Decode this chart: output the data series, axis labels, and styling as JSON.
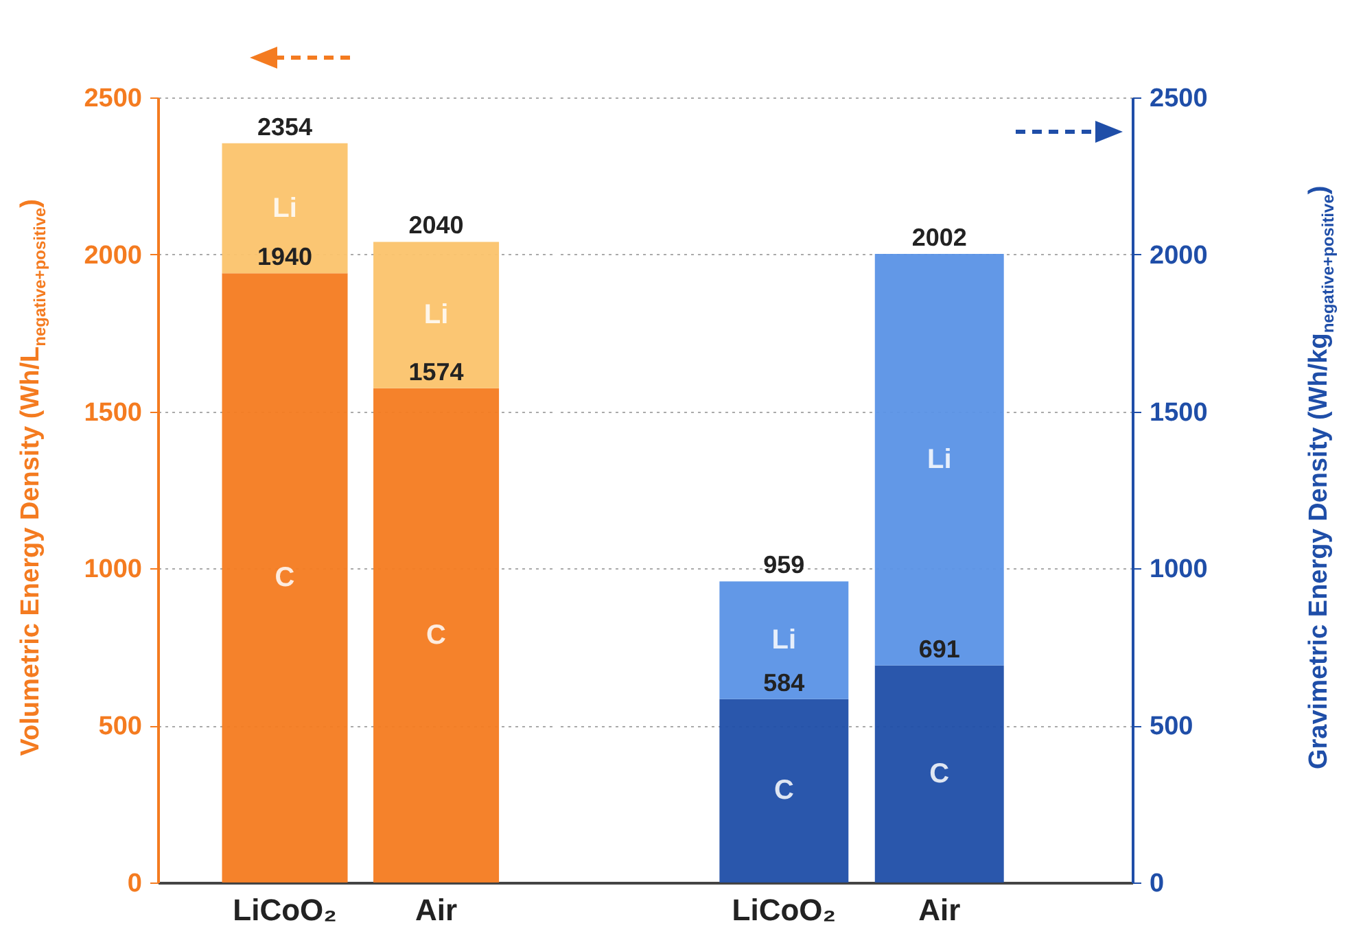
{
  "chart_data": [
    {
      "type": "bar",
      "stacked": true,
      "totals": [
        "2354",
        "2040"
      ],
      "categories": [
        "LiCoO₂",
        "Air"
      ],
      "ylabel": "Volumetric Energy Density (Wh/L$_{negative+positive}$)",
      "ylim": [
        0,
        2500
      ],
      "yticks": [
        0,
        500,
        1000,
        1500,
        2000,
        2500
      ],
      "grid": "y",
      "series": [
        {
          "name": "C",
          "color": "#f47b20",
          "values": [
            1940,
            1574
          ],
          "value_labels": [
            "1940",
            "1574"
          ]
        },
        {
          "name": "Li",
          "color": "#fbc36b",
          "values": [
            414,
            466
          ]
        }
      ]
    },
    {
      "type": "bar",
      "stacked": true,
      "totals": [
        "959",
        "2002"
      ],
      "categories": [
        "LiCoO₂",
        "Air"
      ],
      "y2label": "Gravimetric Energy Density (Wh/kg$_{negative+positive}$)",
      "y2lim": [
        0,
        2500
      ],
      "y2ticks": [
        0,
        500,
        1000,
        1500,
        2000,
        2500
      ],
      "grid": "y",
      "series": [
        {
          "name": "C",
          "color": "#1f4ea8",
          "axis": "y2",
          "values": [
            584,
            691
          ],
          "value_labels": [
            "584",
            "691"
          ]
        },
        {
          "name": "Li",
          "color": "#5a92e6",
          "axis": "y2",
          "values": [
            375,
            1311
          ]
        }
      ]
    }
  ]
}
